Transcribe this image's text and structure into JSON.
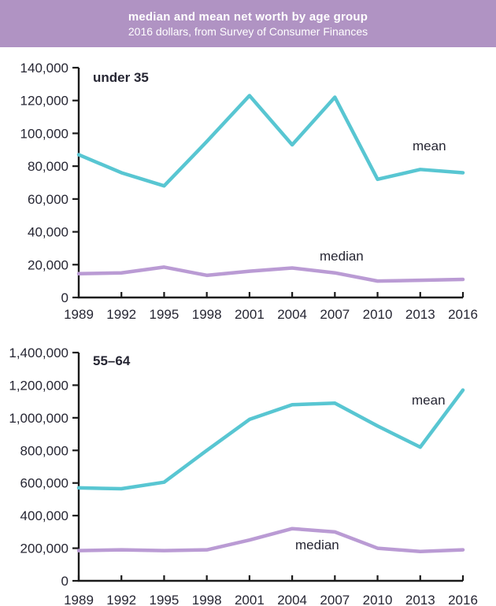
{
  "header": {
    "title": "median and mean net worth by age group",
    "subtitle": "2016 dollars, from Survey of Consumer Finances",
    "bg_color": "#b093c3",
    "text_color": "#ffffff"
  },
  "colors": {
    "mean_line": "#58c6d2",
    "median_line": "#ba9bd4",
    "axis": "#1a1a1a",
    "tick_label": "#262633",
    "annotation": "#262633"
  },
  "chart_data": [
    {
      "type": "line",
      "title": "under 35",
      "x": [
        1989,
        1992,
        1995,
        1998,
        2001,
        2004,
        2007,
        2010,
        2013,
        2016
      ],
      "series": [
        {
          "name": "mean",
          "values": [
            87000,
            76000,
            68000,
            95000,
            123000,
            93000,
            122000,
            72000,
            78000,
            76000
          ],
          "color_key": "mean_line",
          "label": "mean",
          "label_pos": {
            "x": 524,
            "y": 131
          }
        },
        {
          "name": "median",
          "values": [
            14500,
            15000,
            18500,
            13500,
            16000,
            18000,
            15000,
            10000,
            10500,
            11000
          ],
          "color_key": "median_line",
          "label": "median",
          "label_pos": {
            "x": 406,
            "y": 271
          }
        }
      ],
      "ylim": [
        0,
        140000
      ],
      "ytick_step": 20000,
      "xlabel": "",
      "ylabel": "",
      "grid": false,
      "legend": "inline-annotations"
    },
    {
      "type": "line",
      "title": "55–64",
      "x": [
        1989,
        1992,
        1995,
        1998,
        2001,
        2004,
        2007,
        2010,
        2013,
        2016
      ],
      "series": [
        {
          "name": "mean",
          "values": [
            570000,
            565000,
            605000,
            800000,
            990000,
            1080000,
            1090000,
            950000,
            820000,
            1170000
          ],
          "color_key": "mean_line",
          "label": "mean",
          "label_pos": {
            "x": 523,
            "y": 98
          }
        },
        {
          "name": "median",
          "values": [
            185000,
            190000,
            185000,
            190000,
            250000,
            320000,
            300000,
            200000,
            180000,
            190000
          ],
          "color_key": "median_line",
          "label": "median",
          "label_pos": {
            "x": 375,
            "y": 282
          }
        }
      ],
      "ylim": [
        0,
        1400000
      ],
      "ytick_step": 200000,
      "xlabel": "",
      "ylabel": "",
      "grid": false,
      "legend": "inline-annotations"
    }
  ]
}
